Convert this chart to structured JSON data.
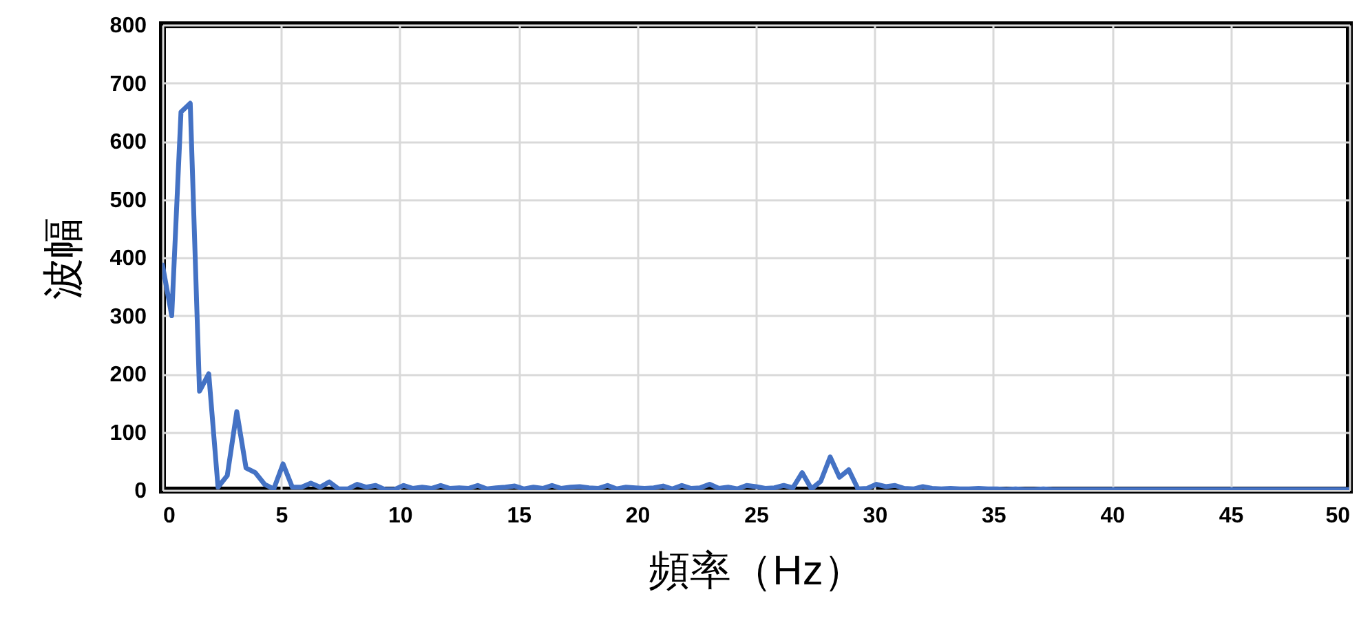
{
  "chart_data": {
    "type": "line",
    "xlabel": "頻率（Hz）",
    "ylabel": "波幅",
    "x": [
      0,
      0.39,
      0.78,
      1.17,
      1.56,
      1.95,
      2.34,
      2.73,
      3.13,
      3.52,
      3.91,
      4.3,
      4.69,
      5.08,
      5.47,
      5.86,
      6.25,
      6.64,
      7.03,
      7.42,
      7.81,
      8.2,
      8.59,
      8.98,
      9.38,
      9.77,
      10.16,
      10.55,
      10.94,
      11.33,
      11.72,
      12.11,
      12.5,
      12.89,
      13.28,
      13.67,
      14.06,
      14.45,
      14.84,
      15.23,
      15.63,
      16.02,
      16.41,
      16.8,
      17.19,
      17.58,
      17.97,
      18.36,
      18.75,
      19.14,
      19.53,
      19.92,
      20.31,
      20.7,
      21.09,
      21.48,
      21.88,
      22.27,
      22.66,
      23.05,
      23.44,
      23.83,
      24.22,
      24.61,
      25,
      25.39,
      25.78,
      26.17,
      26.56,
      26.95,
      27.34,
      27.73,
      28.13,
      28.52,
      28.91,
      29.3,
      29.69,
      30.08,
      30.47,
      30.86,
      31.25,
      31.64,
      32.03,
      32.42,
      32.81,
      33.2,
      33.59,
      33.98,
      34.38,
      34.77,
      35.16,
      35.55,
      35.94,
      36.33,
      36.72,
      37.11,
      37.5,
      37.89,
      38.28,
      38.67,
      39.06,
      39.45,
      39.84,
      40.23,
      40.63,
      41.02,
      41.41,
      41.8,
      42.19,
      42.58,
      42.97,
      43.36,
      43.75,
      44.14,
      44.53,
      44.92,
      45.31,
      45.7,
      46.09,
      46.48,
      46.88,
      47.27,
      47.66,
      48.05,
      48.44,
      48.83,
      49.22,
      49.61,
      50
    ],
    "series": [
      {
        "color": "#4472c4",
        "values": [
          387,
          300,
          650,
          665,
          170,
          200,
          5,
          25,
          135,
          38,
          30,
          10,
          2,
          45,
          5,
          5,
          12,
          5,
          14,
          2,
          2,
          10,
          5,
          8,
          1,
          1,
          8,
          3,
          5,
          3,
          8,
          3,
          4,
          3,
          8,
          2,
          4,
          5,
          7,
          2,
          5,
          3,
          8,
          3,
          5,
          6,
          4,
          3,
          8,
          2,
          5,
          4,
          3,
          4,
          7,
          2,
          8,
          3,
          4,
          10,
          3,
          5,
          2,
          8,
          6,
          3,
          4,
          8,
          4,
          30,
          2,
          15,
          57,
          22,
          35,
          2,
          3,
          10,
          6,
          8,
          3,
          2,
          6,
          3,
          2,
          3,
          2,
          2,
          3,
          2,
          2,
          1,
          2,
          1,
          1,
          2,
          1,
          1,
          1,
          1,
          1,
          1,
          1,
          1,
          1,
          1,
          1,
          1,
          1,
          1,
          1,
          1,
          1,
          1,
          1,
          1,
          1,
          1,
          1,
          1,
          1,
          1,
          1,
          1,
          1,
          1,
          1,
          1,
          1
        ]
      }
    ],
    "xlim": [
      0,
      50
    ],
    "xticks": [
      0,
      5,
      10,
      15,
      20,
      25,
      30,
      35,
      40,
      45,
      50
    ],
    "ylim": [
      0,
      800
    ],
    "yticks": [
      0,
      100,
      200,
      300,
      400,
      500,
      600,
      700,
      800
    ],
    "grid": true,
    "line_style": "solid",
    "marker": "none"
  }
}
